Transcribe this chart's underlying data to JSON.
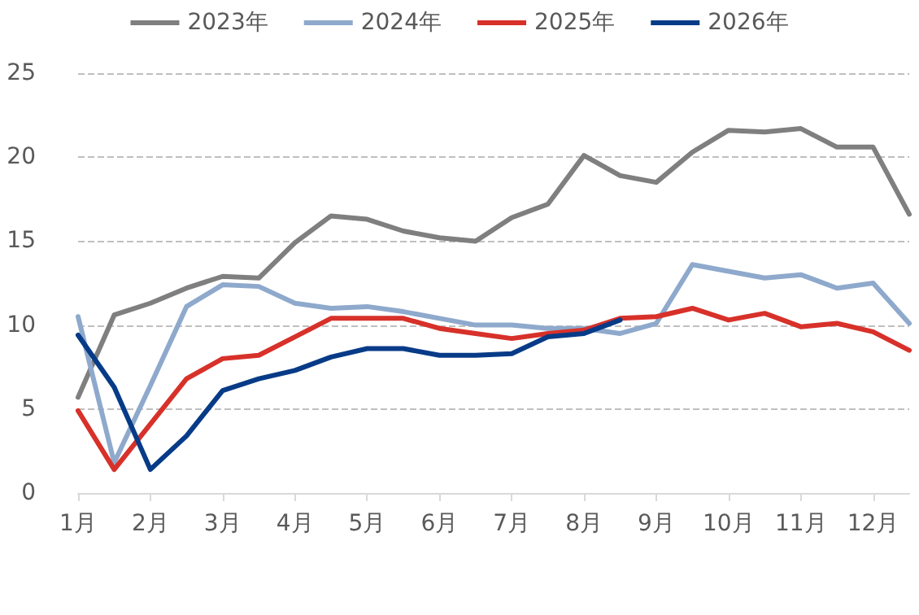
{
  "chart_data": {
    "type": "line",
    "categories": [
      "1月",
      null,
      "2月",
      null,
      "3月",
      null,
      "4月",
      null,
      "5月",
      null,
      "6月",
      null,
      "7月",
      null,
      "8月",
      null,
      "9月",
      null,
      "10月",
      null,
      "11月",
      null,
      "12月",
      null
    ],
    "series": [
      {
        "name": "2023年",
        "color": "#7f7f7f",
        "values": [
          5.7,
          10.6,
          11.3,
          12.2,
          12.9,
          12.8,
          14.9,
          16.5,
          16.3,
          15.6,
          15.2,
          15.0,
          16.4,
          17.2,
          20.1,
          18.9,
          18.5,
          20.3,
          21.6,
          21.5,
          21.7,
          20.6,
          20.6,
          16.6
        ]
      },
      {
        "name": "2024年",
        "color": "#8ea9cc",
        "values": [
          10.5,
          1.8,
          6.4,
          11.1,
          12.4,
          12.3,
          11.3,
          11.0,
          11.1,
          10.8,
          10.4,
          10.0,
          10.0,
          9.8,
          9.8,
          9.5,
          10.1,
          13.6,
          13.2,
          12.8,
          13.0,
          12.2,
          12.5,
          10.1
        ]
      },
      {
        "name": "2025年",
        "color": "#d7312a",
        "values": [
          4.9,
          1.4,
          4.1,
          6.8,
          8.0,
          8.2,
          9.3,
          10.4,
          10.4,
          10.4,
          9.8,
          9.5,
          9.2,
          9.5,
          9.7,
          10.4,
          10.5,
          11.0,
          10.3,
          10.7,
          9.9,
          10.1,
          9.6,
          8.5
        ]
      },
      {
        "name": "2026年",
        "color": "#073b87",
        "values": [
          9.4,
          6.3,
          1.4,
          3.4,
          6.1,
          6.8,
          7.3,
          8.1,
          8.6,
          8.6,
          8.2,
          8.2,
          8.3,
          9.3,
          9.5,
          10.3,
          null,
          null,
          null,
          null,
          null,
          null,
          null,
          null
        ]
      }
    ],
    "ylim": [
      0,
      25
    ],
    "yticks": [
      0,
      5,
      10,
      15,
      20,
      25
    ],
    "grid": "y",
    "legend": "top",
    "marker": "none",
    "line_style": "solid"
  }
}
